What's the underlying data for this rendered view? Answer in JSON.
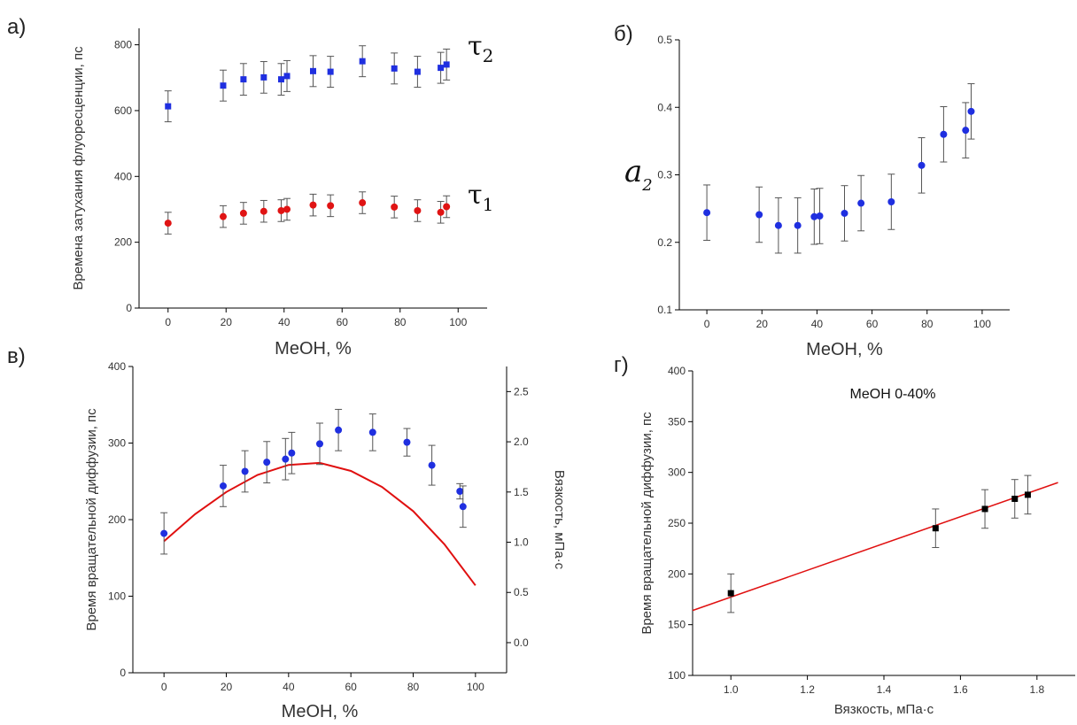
{
  "chart_data": [
    {
      "id": "a",
      "panel_label": "а)",
      "type": "scatter",
      "xlabel": "MeOH, %",
      "ylabel": "Времена затухания флуоресценции, пс",
      "xlim": [
        -10,
        110
      ],
      "ylim": [
        0,
        850
      ],
      "xticks": [
        0,
        20,
        40,
        60,
        80,
        100
      ],
      "yticks": [
        0,
        200,
        400,
        600,
        800
      ],
      "series": [
        {
          "name": "τ2",
          "label_main": "τ",
          "label_sub": "2",
          "marker": "square",
          "color": "#1f2fe0",
          "x": [
            0,
            19,
            26,
            33,
            39,
            41,
            50,
            56,
            67,
            78,
            86,
            94,
            96
          ],
          "y": [
            613,
            676,
            695,
            701,
            695,
            705,
            720,
            718,
            750,
            728,
            718,
            730,
            740
          ],
          "err": [
            47,
            47,
            48,
            48,
            48,
            47,
            47,
            47,
            47,
            47,
            47,
            47,
            47
          ]
        },
        {
          "name": "τ1",
          "label_main": "τ",
          "label_sub": "1",
          "marker": "circle",
          "color": "#e01414",
          "x": [
            0,
            19,
            26,
            33,
            39,
            41,
            50,
            56,
            67,
            78,
            86,
            94,
            96
          ],
          "y": [
            258,
            278,
            288,
            294,
            296,
            300,
            313,
            311,
            320,
            307,
            296,
            291,
            308
          ],
          "err": [
            33,
            33,
            33,
            33,
            33,
            33,
            33,
            33,
            33,
            33,
            33,
            33,
            33
          ]
        }
      ]
    },
    {
      "id": "b",
      "panel_label": "б)",
      "type": "scatter",
      "xlabel": "MeOH, %",
      "ylabel_main": "a",
      "ylabel_sub": "2",
      "xlim": [
        -10,
        110
      ],
      "ylim": [
        0.1,
        0.5
      ],
      "xticks": [
        0,
        20,
        40,
        60,
        80,
        100
      ],
      "yticks": [
        "0.1",
        "0.2",
        "0.3",
        "0.4",
        "0.5"
      ],
      "series": [
        {
          "marker": "circle",
          "color": "#1f2fe0",
          "x": [
            0,
            19,
            26,
            33,
            39,
            41,
            50,
            56,
            67,
            78,
            86,
            94,
            96
          ],
          "y": [
            0.244,
            0.241,
            0.225,
            0.225,
            0.238,
            0.239,
            0.243,
            0.258,
            0.26,
            0.314,
            0.36,
            0.366,
            0.394
          ],
          "err": [
            0.041,
            0.041,
            0.041,
            0.041,
            0.041,
            0.041,
            0.041,
            0.041,
            0.041,
            0.041,
            0.041,
            0.041,
            0.041
          ]
        }
      ]
    },
    {
      "id": "v",
      "panel_label": "в)",
      "type": "scatter",
      "xlabel": "MeOH, %",
      "ylabel": "Время вращательной диффузии, пс",
      "ylabel_right": "Вязкость, мПа·с",
      "xlim": [
        -10,
        110
      ],
      "ylim": [
        0,
        400
      ],
      "ylim_right": [
        -0.3,
        2.75
      ],
      "xticks": [
        0,
        20,
        40,
        60,
        80,
        100
      ],
      "yticks": [
        0,
        100,
        200,
        300,
        400
      ],
      "yticks_right": [
        "0.0",
        "0.5",
        "1.0",
        "1.5",
        "2.0",
        "2.5"
      ],
      "series": [
        {
          "marker": "circle",
          "color": "#1f2fe0",
          "x": [
            0,
            19,
            26,
            33,
            39,
            41,
            50,
            56,
            67,
            78,
            86,
            95,
            96
          ],
          "y": [
            182,
            244,
            263,
            275,
            279,
            287,
            299,
            317,
            314,
            301,
            271,
            237,
            217
          ],
          "err": [
            27,
            27,
            27,
            27,
            27,
            27,
            27,
            27,
            24,
            18,
            26,
            10,
            27
          ]
        }
      ],
      "viscosity_curve": {
        "color": "#e01010",
        "x": [
          0,
          10,
          20,
          30,
          40,
          50,
          60,
          70,
          80,
          90,
          100
        ],
        "y": [
          1.01,
          1.28,
          1.5,
          1.67,
          1.77,
          1.79,
          1.71,
          1.55,
          1.31,
          0.98,
          0.57
        ]
      }
    },
    {
      "id": "g",
      "panel_label": "г)",
      "type": "scatter",
      "annotation": "MeOH 0-40%",
      "xlabel": "Вязкость, мПа·с",
      "ylabel": "Время вращательной диффузии, пс",
      "xlim": [
        0.9,
        1.9
      ],
      "ylim": [
        100,
        400
      ],
      "xticks": [
        "1.0",
        "1.2",
        "1.4",
        "1.6",
        "1.8"
      ],
      "yticks": [
        100,
        150,
        200,
        250,
        300,
        350,
        400
      ],
      "series": [
        {
          "marker": "square",
          "color": "#000000",
          "x": [
            1.0,
            1.535,
            1.664,
            1.742,
            1.776
          ],
          "y": [
            181,
            245,
            264,
            274,
            278
          ],
          "err": [
            19,
            19,
            19,
            19,
            19
          ]
        }
      ],
      "fit_line": {
        "color": "#e01010",
        "x": [
          0.9,
          1.855
        ],
        "y": [
          164,
          290
        ]
      }
    }
  ]
}
